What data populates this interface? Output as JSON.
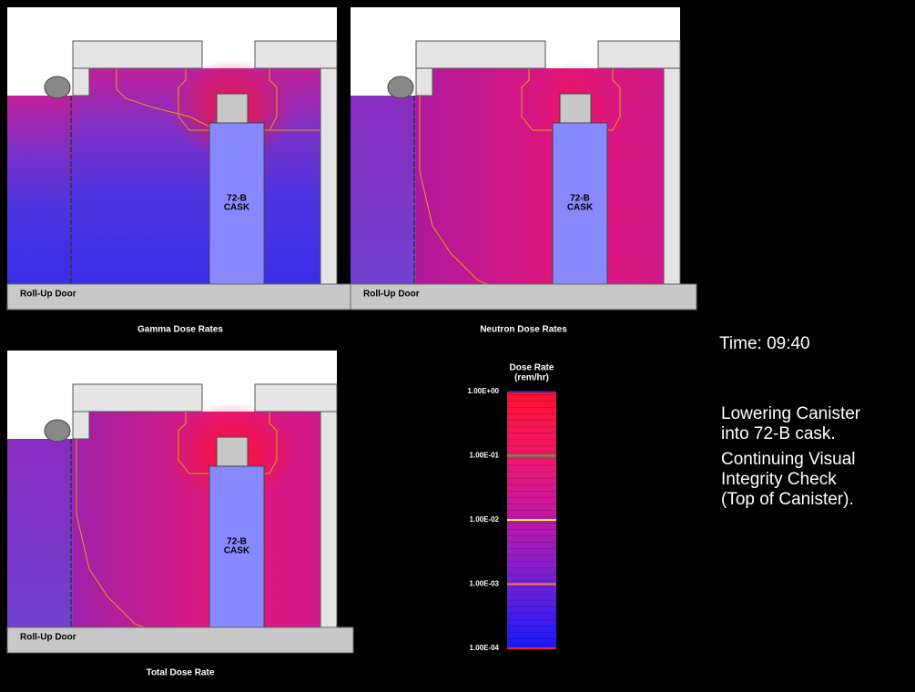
{
  "panels": [
    {
      "title": "Gamma Dose Rates",
      "cask": [
        "72-B",
        "CASK"
      ],
      "door": "Roll-Up Door"
    },
    {
      "title": "Neutron Dose Rates",
      "cask": [
        "72-B",
        "CASK"
      ],
      "door": "Roll-Up Door"
    },
    {
      "title": "Total Dose Rate",
      "cask": [
        "72-B",
        "CASK"
      ],
      "door": "Roll-Up Door"
    }
  ],
  "legend": {
    "title": "Dose Rate",
    "unit": "(rem/hr)",
    "ticks": [
      {
        "value": 1,
        "label": "1.00E+00"
      },
      {
        "value": 0.1,
        "label": "1.00E-01"
      },
      {
        "value": 0.01,
        "label": "1.00E-02"
      },
      {
        "value": 0.001,
        "label": "1.00E-03"
      },
      {
        "value": 0.0001,
        "label": "1.00E-04"
      }
    ]
  },
  "status": {
    "time": "Time:  09:40",
    "notes": [
      [
        "Lowering Canister",
        "into 72-B cask."
      ],
      [
        "Continuing Visual",
        "Integrity Check",
        "(Top of Canister)."
      ]
    ]
  }
}
